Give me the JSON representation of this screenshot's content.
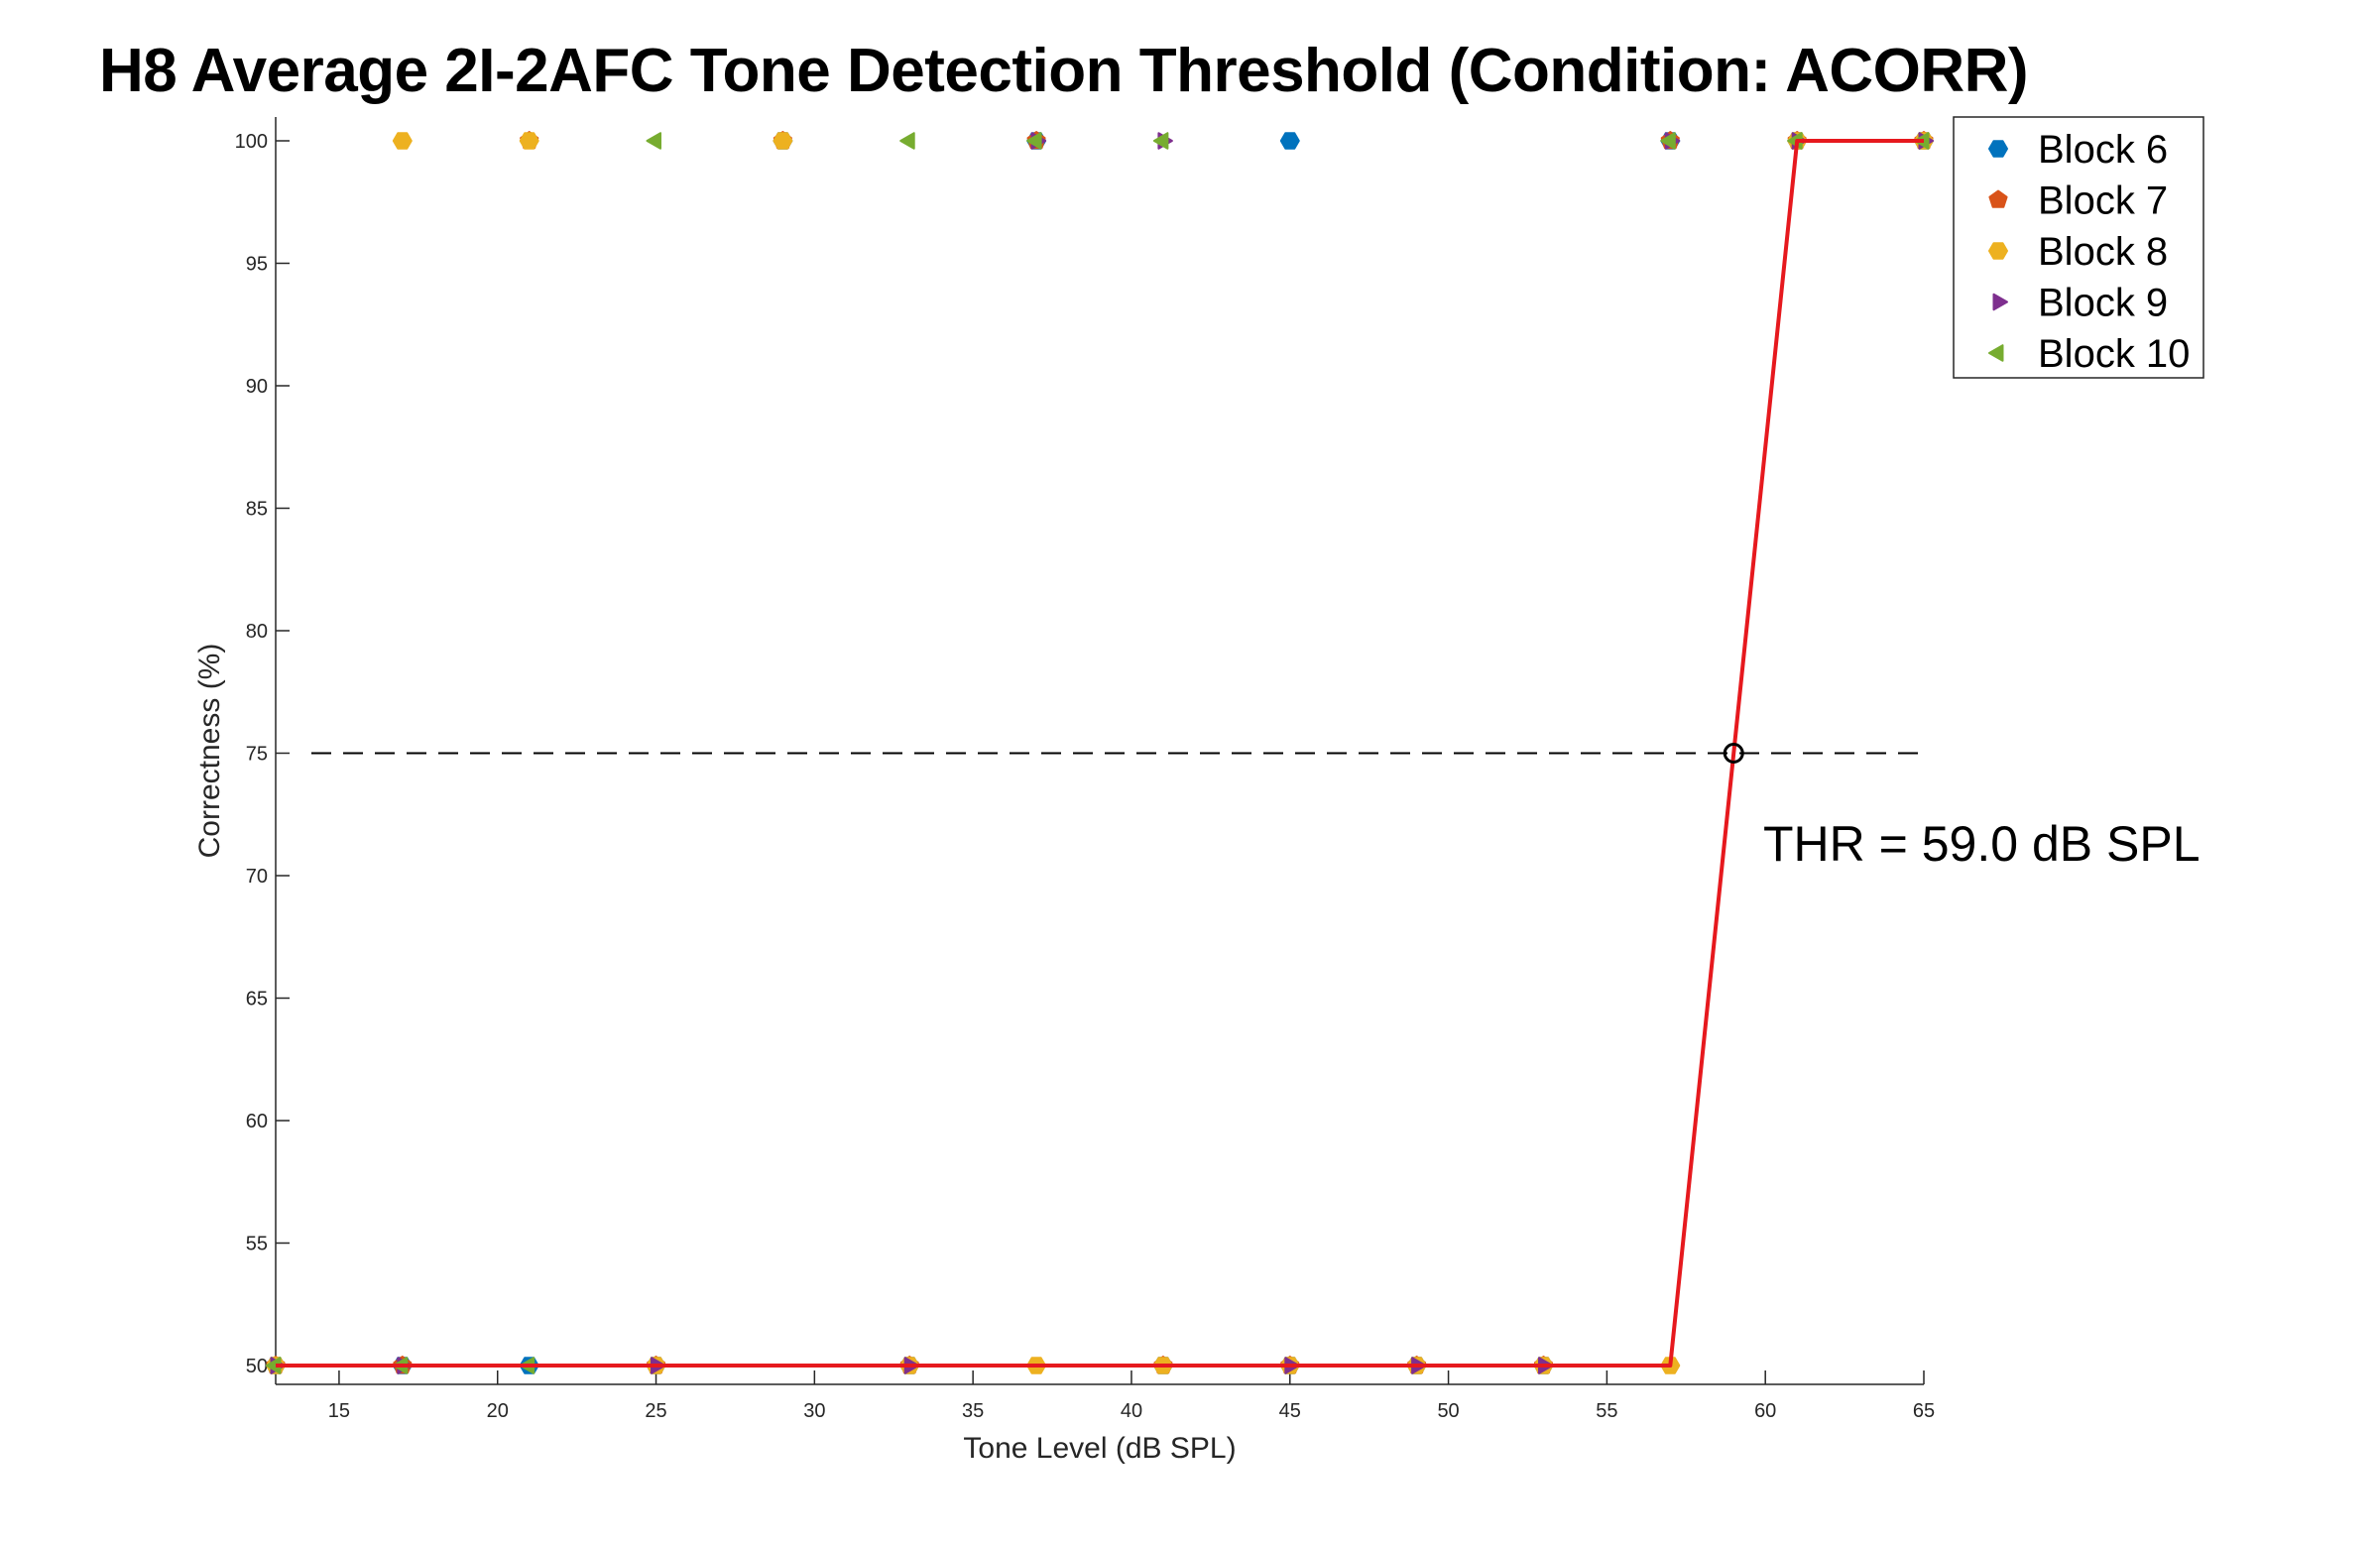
{
  "chart_data": {
    "type": "scatter",
    "title": "H8 Average 2I-2AFC Tone Detection Threshold (Condition: ACORR)",
    "xlabel": "Tone Level (dB SPL)",
    "ylabel": "Correctness (%)",
    "xlim": [
      13,
      65
    ],
    "ylim": [
      50,
      100
    ],
    "xticks": [
      15,
      20,
      25,
      30,
      35,
      40,
      45,
      50,
      55,
      60,
      65
    ],
    "yticks": [
      50,
      55,
      60,
      65,
      70,
      75,
      80,
      85,
      90,
      95,
      100
    ],
    "xtick_labels": [
      "15",
      "20",
      "25",
      "30",
      "35",
      "40",
      "45",
      "50",
      "55",
      "60",
      "65"
    ],
    "ytick_labels": [
      "50",
      "55",
      "60",
      "65",
      "70",
      "75",
      "80",
      "85",
      "90",
      "95",
      "100"
    ],
    "grid": false,
    "legend_position": "top-right",
    "series": [
      {
        "name": "Block 6",
        "color": "#0072BD",
        "marker": "hexagon",
        "points": [
          [
            13,
            50
          ],
          [
            17,
            50
          ],
          [
            21,
            50
          ],
          [
            25,
            50
          ],
          [
            29,
            100
          ],
          [
            33,
            50
          ],
          [
            37,
            100
          ],
          [
            41,
            50
          ],
          [
            45,
            100
          ],
          [
            45,
            50
          ],
          [
            49,
            50
          ],
          [
            53,
            50
          ],
          [
            57,
            100
          ],
          [
            61,
            100
          ],
          [
            65,
            100
          ]
        ]
      },
      {
        "name": "Block 7",
        "color": "#D95319",
        "marker": "pentagon",
        "points": [
          [
            13,
            50
          ],
          [
            17,
            50
          ],
          [
            21,
            100
          ],
          [
            25,
            50
          ],
          [
            29,
            100
          ],
          [
            33,
            50
          ],
          [
            37,
            100
          ],
          [
            41,
            50
          ],
          [
            45,
            50
          ],
          [
            49,
            50
          ],
          [
            53,
            50
          ],
          [
            57,
            100
          ],
          [
            61,
            100
          ],
          [
            65,
            100
          ]
        ]
      },
      {
        "name": "Block 8",
        "color": "#EDB120",
        "marker": "hexagon",
        "points": [
          [
            13,
            50
          ],
          [
            17,
            100
          ],
          [
            21,
            100
          ],
          [
            25,
            50
          ],
          [
            29,
            100
          ],
          [
            33,
            50
          ],
          [
            37,
            50
          ],
          [
            41,
            50
          ],
          [
            45,
            50
          ],
          [
            49,
            50
          ],
          [
            53,
            50
          ],
          [
            57,
            50
          ],
          [
            61,
            100
          ],
          [
            65,
            100
          ]
        ]
      },
      {
        "name": "Block 9",
        "color": "#7E2F8E",
        "marker": "triangle-right",
        "points": [
          [
            13,
            50
          ],
          [
            17,
            50
          ],
          [
            25,
            50
          ],
          [
            33,
            50
          ],
          [
            37,
            100
          ],
          [
            41,
            100
          ],
          [
            45,
            50
          ],
          [
            49,
            50
          ],
          [
            53,
            50
          ],
          [
            57,
            100
          ],
          [
            61,
            100
          ],
          [
            65,
            100
          ]
        ]
      },
      {
        "name": "Block 10",
        "color": "#77AC30",
        "marker": "triangle-left",
        "points": [
          [
            13,
            50
          ],
          [
            17,
            50
          ],
          [
            21,
            50
          ],
          [
            25,
            100
          ],
          [
            33,
            100
          ],
          [
            37,
            100
          ],
          [
            41,
            100
          ],
          [
            57,
            100
          ],
          [
            61,
            100
          ],
          [
            65,
            100
          ]
        ]
      }
    ],
    "fit_line": {
      "color": "#E6191E",
      "points": [
        [
          13,
          50
        ],
        [
          57,
          50
        ],
        [
          61,
          100
        ],
        [
          65,
          100
        ]
      ]
    },
    "reference_line": {
      "y": 75,
      "style": "dashed",
      "color": "#000000"
    },
    "threshold": {
      "x": 59.0,
      "y": 75
    },
    "annotation": "THR = 59.0 dB SPL"
  }
}
